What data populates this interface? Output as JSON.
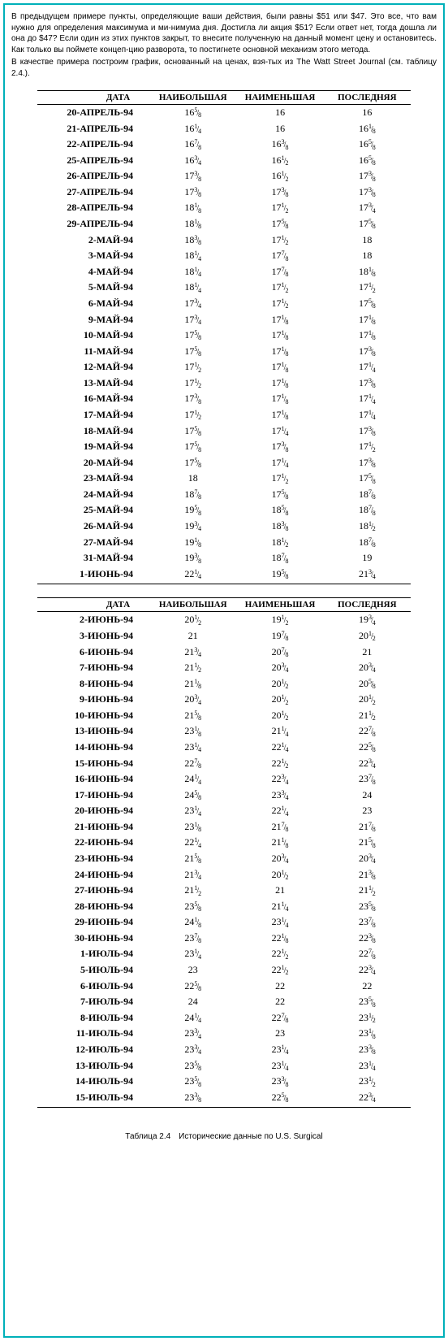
{
  "paragraphs": [
    "В предыдущем примере пункты, определяющие ваши действия, были равны $51 или $47. Это все, что вам нужно для определения максимума и ми-нимума дня. Достигла ли акция $51? Если ответ нет, тогда дошла ли она до $47? Если один из этих пунктов закрыт, то внесите полученную на данный момент цену и остановитесь. Как только вы поймете концеп-цию разворота, то постигнете основной механизм этого метода.",
    "В качестве примера построим график, основанный на ценах, взя-тых из The Watt Street Journal (см. таблицу 2.4.)."
  ],
  "headers": {
    "date": "ДАТА",
    "high": "НАИБОЛЬШАЯ",
    "low": "НАИМЕНЬШАЯ",
    "last": "ПОСЛЕДНЯЯ"
  },
  "caption": "Таблица 2.4 Исторические данные по U.S. Surgical",
  "table1": {
    "rows": [
      {
        "d": "20-АПРЕЛЬ-94",
        "h": "16⅝",
        "l": "16",
        "c": "16"
      },
      {
        "d": "21-АПРЕЛЬ-94",
        "h": "16¼",
        "l": "16",
        "c": "16⅛"
      },
      {
        "d": "22-АПРЕЛЬ-94",
        "h": "16⅞",
        "l": "16⅜",
        "c": "16⅝"
      },
      {
        "d": "25-АПРЕЛЬ-94",
        "h": "16¾",
        "l": "16½",
        "c": "16⅝"
      },
      {
        "d": "26-АПРЕЛЬ-94",
        "h": "17⅜",
        "l": "16½",
        "c": "17⅜"
      },
      {
        "d": "27-АПРЕЛЬ-94",
        "h": "17⅜",
        "l": "17⅜",
        "c": "17⅜"
      },
      {
        "d": "28-АПРЕЛЬ-94",
        "h": "18⅛",
        "l": "17½",
        "c": "17¾"
      },
      {
        "d": "29-АПРЕЛЬ-94",
        "h": "18⅛",
        "l": "17⅝",
        "c": "17⅝"
      },
      {
        "d": "2-МАЙ-94",
        "h": "18⅜",
        "l": "17½",
        "c": "18"
      },
      {
        "d": "3-МАЙ-94",
        "h": "18¼",
        "l": "17⅞",
        "c": "18"
      },
      {
        "d": "4-МАЙ-94",
        "h": "18¼",
        "l": "17⅞",
        "c": "18⅛"
      },
      {
        "d": "5-МАЙ-94",
        "h": "18¼",
        "l": "17½",
        "c": "17½"
      },
      {
        "d": "6-МАЙ-94",
        "h": "17¾",
        "l": "17½",
        "c": "17⅝"
      },
      {
        "d": "9-МАЙ-94",
        "h": "17¾",
        "l": "17⅛",
        "c": "17⅛"
      },
      {
        "d": "10-МАЙ-94",
        "h": "17⅝",
        "l": "17⅛",
        "c": "17⅛"
      },
      {
        "d": "11-МАЙ-94",
        "h": "17⅝",
        "l": "17⅛",
        "c": "17⅜"
      },
      {
        "d": "12-МАЙ-94",
        "h": "17½",
        "l": "17⅛",
        "c": "17¼"
      },
      {
        "d": "13-МАЙ-94",
        "h": "17½",
        "l": "17⅛",
        "c": "17⅜"
      },
      {
        "d": "16-МАЙ-94",
        "h": "17⅜",
        "l": "17⅛",
        "c": "17¼"
      },
      {
        "d": "17-МАЙ-94",
        "h": "17½",
        "l": "17⅛",
        "c": "17¼"
      },
      {
        "d": "18-МАЙ-94",
        "h": "17⅝",
        "l": "17¼",
        "c": "17⅜"
      },
      {
        "d": "19-МАЙ-94",
        "h": "17⅝",
        "l": "17⅜",
        "c": "17½"
      },
      {
        "d": "20-МАЙ-94",
        "h": "17⅝",
        "l": "17¼",
        "c": "17⅜"
      },
      {
        "d": "23-МАЙ-94",
        "h": "18",
        "l": "17½",
        "c": "17⅝"
      },
      {
        "d": "24-МАЙ-94",
        "h": "18⅞",
        "l": "17⅝",
        "c": "18⅞"
      },
      {
        "d": "25-МАЙ-94",
        "h": "19⅝",
        "l": "18⅝",
        "c": "18⅞"
      },
      {
        "d": "26-МАЙ-94",
        "h": "19¾",
        "l": "18⅜",
        "c": "18½"
      },
      {
        "d": "27-МАЙ-94",
        "h": "19⅛",
        "l": "18½",
        "c": "18⅞"
      },
      {
        "d": "31-МАЙ-94",
        "h": "19⅜",
        "l": "18⅞",
        "c": "19"
      },
      {
        "d": "1-ИЮНЬ-94",
        "h": "22¼",
        "l": "19⅝",
        "c": "21¾"
      }
    ]
  },
  "table2": {
    "rows": [
      {
        "d": "2-ИЮНЬ-94",
        "h": "20½",
        "l": "19½",
        "c": "19¾"
      },
      {
        "d": "3-ИЮНЬ-94",
        "h": "21",
        "l": "19⅞",
        "c": "20½"
      },
      {
        "d": "6-ИЮНЬ-94",
        "h": "21¾",
        "l": "20⅞",
        "c": "21"
      },
      {
        "d": "7-ИЮНЬ-94",
        "h": "21½",
        "l": "20¾",
        "c": "20¾"
      },
      {
        "d": "8-ИЮНЬ-94",
        "h": "21⅛",
        "l": "20½",
        "c": "20⅝"
      },
      {
        "d": "9-ИЮНЬ-94",
        "h": "20¾",
        "l": "20½",
        "c": "20½"
      },
      {
        "d": "10-ИЮНЬ-94",
        "h": "21⅝",
        "l": "20½",
        "c": "21½"
      },
      {
        "d": "13-ИЮНЬ-94",
        "h": "23⅛",
        "l": "21¼",
        "c": "22⅞"
      },
      {
        "d": "14-ИЮНЬ-94",
        "h": "23¼",
        "l": "22¼",
        "c": "22⅝"
      },
      {
        "d": "15-ИЮНЬ-94",
        "h": "22⅞",
        "l": "22½",
        "c": "22¾"
      },
      {
        "d": "16-ИЮНЬ-94",
        "h": "24¼",
        "l": "22¾",
        "c": "23⅞"
      },
      {
        "d": "17-ИЮНЬ-94",
        "h": "24⅝",
        "l": "23¾",
        "c": "24"
      },
      {
        "d": "20-ИЮНЬ-94",
        "h": "23¼",
        "l": "22¼",
        "c": "23"
      },
      {
        "d": "21-ИЮНЬ-94",
        "h": "23⅛",
        "l": "21⅞",
        "c": "21⅞"
      },
      {
        "d": "22-ИЮНЬ-94",
        "h": "22¼",
        "l": "21⅛",
        "c": "21⅝"
      },
      {
        "d": "23-ИЮНЬ-94",
        "h": "21⅝",
        "l": "20¾",
        "c": "20¾"
      },
      {
        "d": "24-ИЮНЬ-94",
        "h": "21¾",
        "l": "20½",
        "c": "21⅜"
      },
      {
        "d": "27-ИЮНЬ-94",
        "h": "21½",
        "l": "21",
        "c": "21½"
      },
      {
        "d": "28-ИЮНЬ-94",
        "h": "23⅝",
        "l": "21¼",
        "c": "23⅝"
      },
      {
        "d": "29-ИЮНЬ-94",
        "h": "24⅛",
        "l": "23¼",
        "c": "23⅞"
      },
      {
        "d": "30-ИЮНЬ-94",
        "h": "23⅞",
        "l": "22⅛",
        "c": "22⅜"
      },
      {
        "d": "1-ИЮЛЬ-94",
        "h": "23¼",
        "l": "22½",
        "c": "22⅞"
      },
      {
        "d": "5-ИЮЛЬ-94",
        "h": "23",
        "l": "22½",
        "c": "22¾"
      },
      {
        "d": "6-ИЮЛЬ-94",
        "h": "22⅝",
        "l": "22",
        "c": "22"
      },
      {
        "d": "7-ИЮЛЬ-94",
        "h": "24",
        "l": "22",
        "c": "23⅝"
      },
      {
        "d": "8-ИЮЛЬ-94",
        "h": "24¼",
        "l": "22⅞",
        "c": "23½"
      },
      {
        "d": "11-ИЮЛЬ-94",
        "h": "23¾",
        "l": "23",
        "c": "23⅛"
      },
      {
        "d": "12-ИЮЛЬ-94",
        "h": "23¾",
        "l": "23¼",
        "c": "23⅜"
      },
      {
        "d": "13-ИЮЛЬ-94",
        "h": "23⅝",
        "l": "23¼",
        "c": "23¼"
      },
      {
        "d": "14-ИЮЛЬ-94",
        "h": "23⅝",
        "l": "23⅜",
        "c": "23½"
      },
      {
        "d": "15-ИЮЛЬ-94",
        "h": "23⅜",
        "l": "22⅝",
        "c": "22¾"
      }
    ]
  }
}
